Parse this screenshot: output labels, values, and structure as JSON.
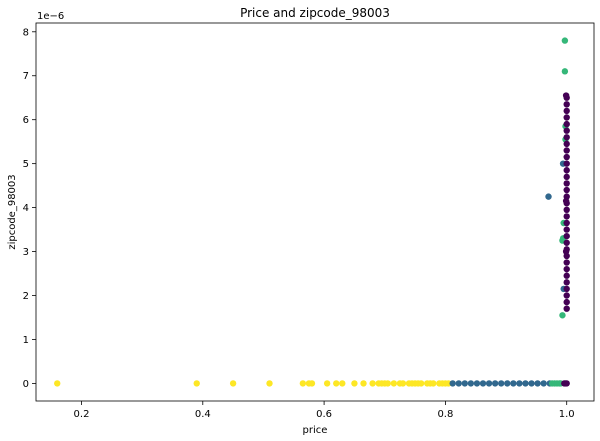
{
  "chart_data": {
    "type": "scatter",
    "title": "Price and zipcode_98003",
    "xlabel": "price",
    "ylabel": "zipcode_98003",
    "y_offset_label": "1e−6",
    "xlim": [
      0.125,
      1.045
    ],
    "ylim": [
      -0.4,
      8.2
    ],
    "y_scale_factor": 1e-06,
    "xticks": [
      0.2,
      0.4,
      0.6,
      0.8,
      1.0
    ],
    "xtick_labels": [
      "0.2",
      "0.4",
      "0.6",
      "0.8",
      "1.0"
    ],
    "yticks": [
      0,
      1,
      2,
      3,
      4,
      5,
      6,
      7,
      8
    ],
    "ytick_labels": [
      "0",
      "1",
      "2",
      "3",
      "4",
      "5",
      "6",
      "7",
      "8"
    ],
    "grid": false,
    "colors": {
      "yellow": "#fde725",
      "blue": "#31688e",
      "green": "#35b779",
      "purple": "#440154"
    },
    "series": [
      {
        "color": "#fde725",
        "points": [
          [
            0.16,
            0
          ],
          [
            0.39,
            0
          ],
          [
            0.45,
            0
          ],
          [
            0.51,
            0
          ],
          [
            0.565,
            0
          ],
          [
            0.575,
            0
          ],
          [
            0.58,
            0
          ],
          [
            0.605,
            0
          ],
          [
            0.62,
            0
          ],
          [
            0.63,
            0
          ],
          [
            0.65,
            0
          ],
          [
            0.665,
            0
          ],
          [
            0.68,
            0
          ],
          [
            0.69,
            0
          ],
          [
            0.695,
            0
          ],
          [
            0.7,
            0
          ],
          [
            0.705,
            0
          ],
          [
            0.715,
            0
          ],
          [
            0.725,
            0
          ],
          [
            0.73,
            0
          ],
          [
            0.74,
            0
          ],
          [
            0.745,
            0
          ],
          [
            0.75,
            0
          ],
          [
            0.755,
            0
          ],
          [
            0.76,
            0
          ],
          [
            0.77,
            0
          ],
          [
            0.775,
            0
          ],
          [
            0.78,
            0
          ],
          [
            0.79,
            0
          ],
          [
            0.795,
            0
          ],
          [
            0.8,
            0
          ],
          [
            0.805,
            0
          ]
        ]
      },
      {
        "color": "#31688e",
        "points": [
          [
            0.812,
            0
          ],
          [
            0.822,
            0
          ],
          [
            0.832,
            0
          ],
          [
            0.842,
            0
          ],
          [
            0.852,
            0
          ],
          [
            0.862,
            0
          ],
          [
            0.872,
            0
          ],
          [
            0.882,
            0
          ],
          [
            0.892,
            0
          ],
          [
            0.902,
            0
          ],
          [
            0.912,
            0
          ],
          [
            0.922,
            0
          ],
          [
            0.932,
            0
          ],
          [
            0.942,
            0
          ],
          [
            0.952,
            0
          ],
          [
            0.962,
            0
          ],
          [
            0.972,
            0
          ],
          [
            0.97,
            4.25
          ],
          [
            0.994,
            5.0
          ],
          [
            0.995,
            2.15
          ]
        ]
      },
      {
        "color": "#35b779",
        "points": [
          [
            0.976,
            0
          ],
          [
            0.98,
            0
          ],
          [
            0.984,
            0
          ],
          [
            0.988,
            0
          ],
          [
            0.99,
            0
          ],
          [
            0.993,
            1.55
          ],
          [
            0.993,
            3.25
          ],
          [
            0.994,
            3.3
          ],
          [
            0.995,
            3.65
          ],
          [
            0.997,
            7.1
          ],
          [
            0.997,
            7.8
          ],
          [
            0.998,
            5.85
          ],
          [
            0.998,
            5.55
          ]
        ]
      },
      {
        "color": "#440154",
        "points": [
          [
            0.996,
            0
          ],
          [
            0.998,
            0
          ],
          [
            1.0,
            0
          ],
          [
            1.0,
            1.7
          ],
          [
            1.0,
            1.85
          ],
          [
            1.0,
            2.0
          ],
          [
            1.0,
            2.15
          ],
          [
            1.0,
            2.3
          ],
          [
            1.0,
            2.45
          ],
          [
            1.0,
            2.6
          ],
          [
            1.0,
            2.75
          ],
          [
            1.0,
            2.9
          ],
          [
            1.0,
            3.05
          ],
          [
            1.0,
            3.2
          ],
          [
            1.0,
            3.35
          ],
          [
            1.0,
            3.5
          ],
          [
            1.0,
            3.65
          ],
          [
            1.0,
            3.8
          ],
          [
            1.0,
            3.95
          ],
          [
            1.0,
            4.1
          ],
          [
            1.0,
            4.25
          ],
          [
            1.0,
            4.4
          ],
          [
            1.0,
            4.55
          ],
          [
            1.0,
            4.7
          ],
          [
            1.0,
            4.85
          ],
          [
            1.0,
            5.0
          ],
          [
            1.0,
            5.15
          ],
          [
            1.0,
            5.3
          ],
          [
            1.0,
            5.45
          ],
          [
            1.0,
            5.6
          ],
          [
            1.0,
            5.75
          ],
          [
            1.0,
            5.9
          ],
          [
            1.0,
            6.05
          ],
          [
            1.0,
            6.2
          ],
          [
            1.0,
            6.35
          ],
          [
            1.0,
            6.5
          ],
          [
            0.999,
            6.55
          ],
          [
            0.999,
            4.15
          ],
          [
            0.999,
            3.0
          ]
        ]
      }
    ]
  }
}
